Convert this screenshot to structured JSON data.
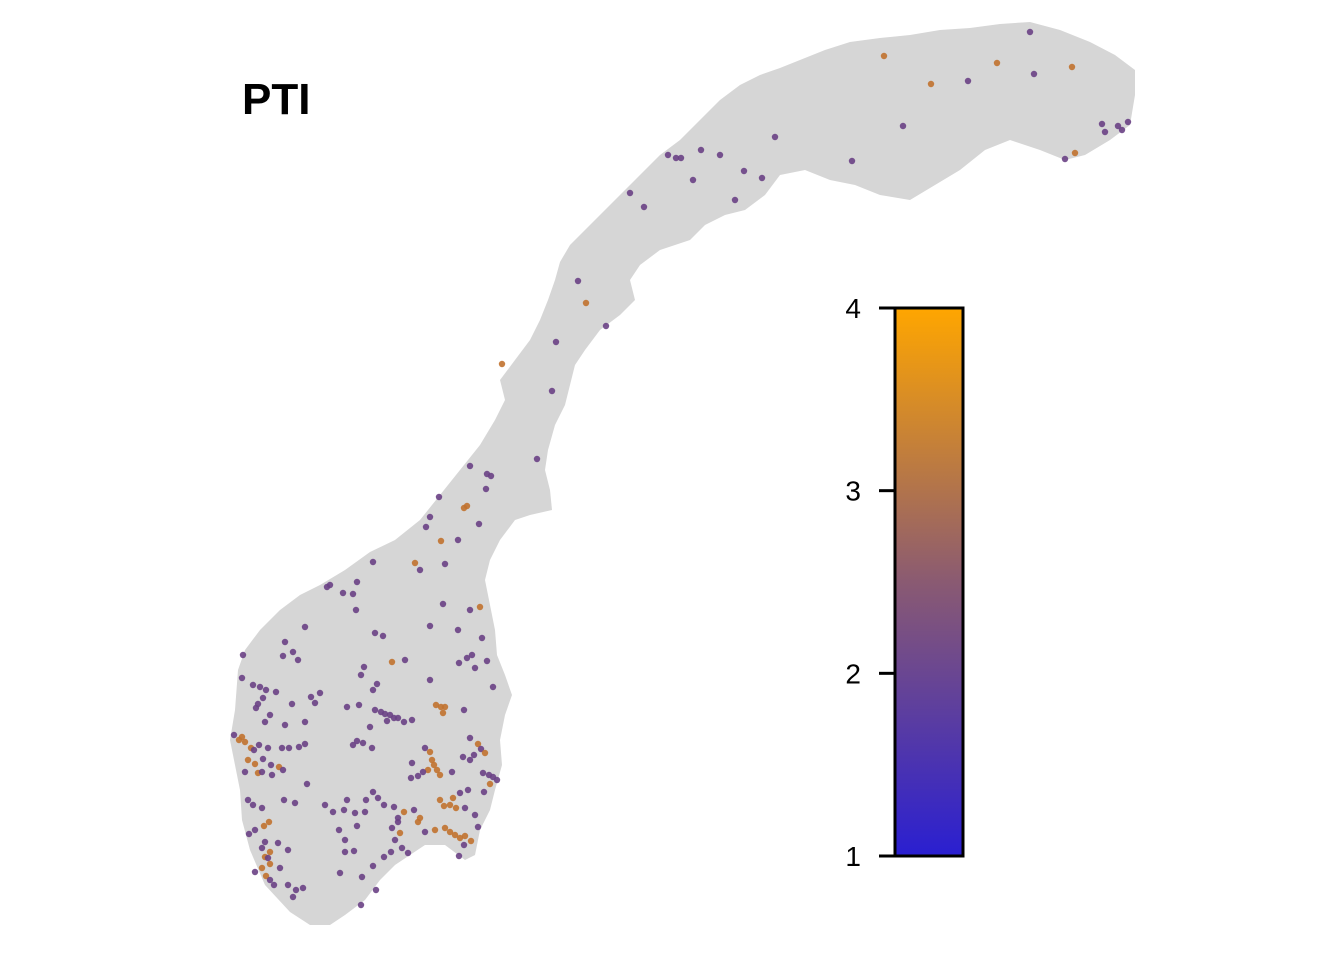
{
  "title": "PTI",
  "legend": {
    "ticks": [
      "4",
      "3",
      "2",
      "1"
    ],
    "min": 1,
    "max": 4,
    "color_low": "#2a1fd1",
    "color_mid": "#8a5a72",
    "color_high": "#ffa600"
  },
  "colors": {
    "land": "#d6d6d6",
    "background": "#ffffff",
    "purple_point": "#6a4185",
    "orange_point": "#c1722f"
  }
}
